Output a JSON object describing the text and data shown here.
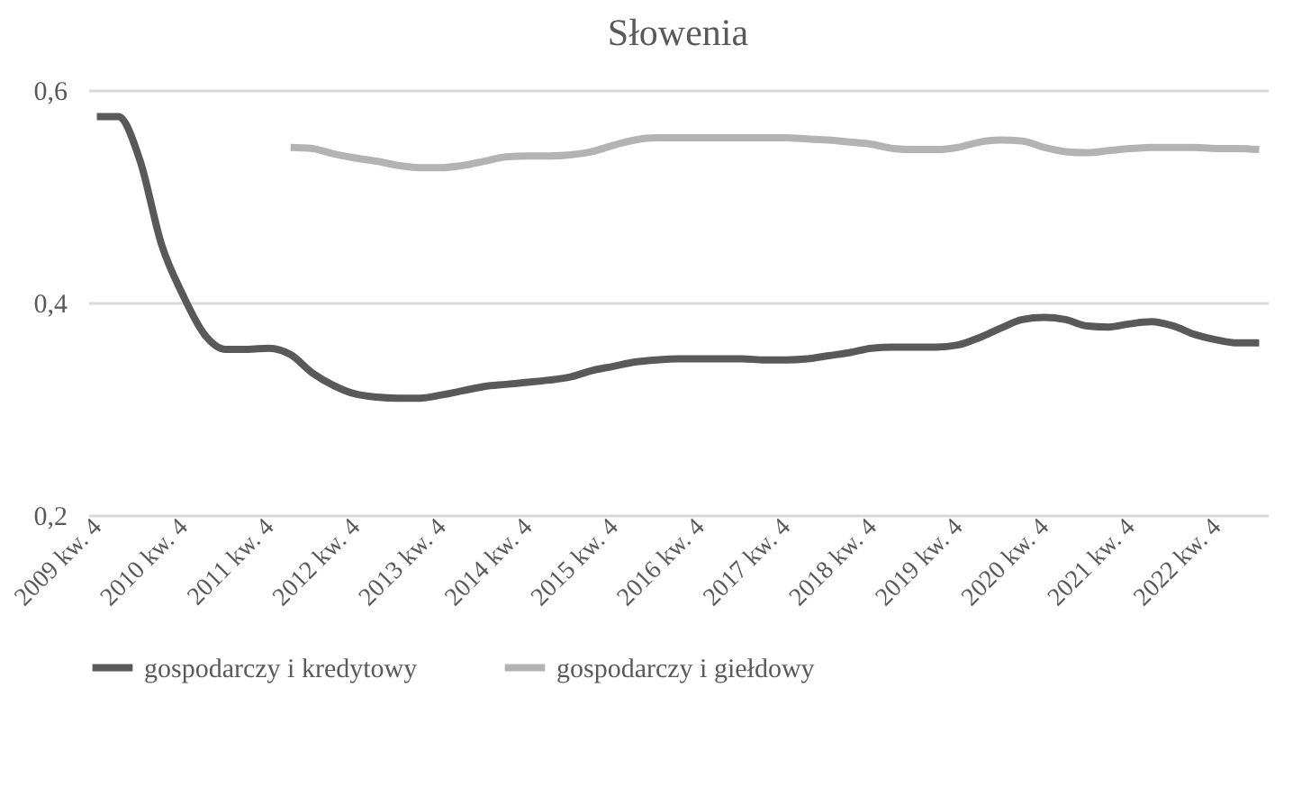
{
  "chart_data": {
    "type": "line",
    "title": "Słowenia",
    "categories": [
      "2009 kw. 4",
      null,
      null,
      null,
      "2010 kw. 4",
      null,
      null,
      null,
      "2011 kw. 4",
      null,
      null,
      null,
      "2012 kw. 4",
      null,
      null,
      null,
      "2013 kw. 4",
      null,
      null,
      null,
      "2014 kw. 4",
      null,
      null,
      null,
      "2015 kw. 4",
      null,
      null,
      null,
      "2016 kw. 4",
      null,
      null,
      null,
      "2017 kw. 4",
      null,
      null,
      null,
      "2018 kw. 4",
      null,
      null,
      null,
      "2019 kw. 4",
      null,
      null,
      null,
      "2020 kw. 4",
      null,
      null,
      null,
      "2021 kw. 4",
      null,
      null,
      null,
      "2022 kw. 4",
      null,
      null
    ],
    "series": [
      {
        "name": "gospodarczy i kredytowy",
        "color": "#595959",
        "values": [
          0.575,
          0.575,
          0.534,
          0.455,
          0.407,
          0.37,
          0.356,
          0.356,
          0.357,
          0.351,
          0.334,
          0.322,
          0.314,
          0.311,
          0.31,
          0.31,
          0.313,
          0.317,
          0.321,
          0.323,
          0.325,
          0.327,
          0.33,
          0.336,
          0.34,
          0.344,
          0.346,
          0.347,
          0.347,
          0.347,
          0.347,
          0.346,
          0.346,
          0.347,
          0.35,
          0.353,
          0.357,
          0.358,
          0.358,
          0.358,
          0.36,
          0.367,
          0.376,
          0.384,
          0.386,
          0.384,
          0.378,
          0.377,
          0.38,
          0.382,
          0.378,
          0.37,
          0.365,
          0.362,
          0.362
        ]
      },
      {
        "name": "gospodarczy i giełdowy",
        "color": "#b3b3b3",
        "values": [
          null,
          null,
          null,
          null,
          null,
          null,
          null,
          null,
          null,
          0.546,
          0.545,
          0.54,
          0.536,
          0.533,
          0.529,
          0.527,
          0.527,
          0.529,
          0.533,
          0.537,
          0.538,
          0.538,
          0.539,
          0.542,
          0.548,
          0.553,
          0.555,
          0.555,
          0.555,
          0.555,
          0.555,
          0.555,
          0.555,
          0.554,
          0.553,
          0.551,
          0.549,
          0.545,
          0.544,
          0.544,
          0.546,
          0.551,
          0.553,
          0.552,
          0.546,
          0.542,
          0.541,
          0.543,
          0.545,
          0.546,
          0.546,
          0.546,
          0.545,
          0.545,
          0.544
        ]
      }
    ],
    "ylim": [
      0.2,
      0.6
    ],
    "yticks": [
      {
        "value": 0.2,
        "label": "0,2"
      },
      {
        "value": 0.4,
        "label": "0,4"
      },
      {
        "value": 0.6,
        "label": "0,6"
      }
    ],
    "grid": "y",
    "legend": "bottom",
    "line_style": "solid",
    "marker": "none"
  }
}
